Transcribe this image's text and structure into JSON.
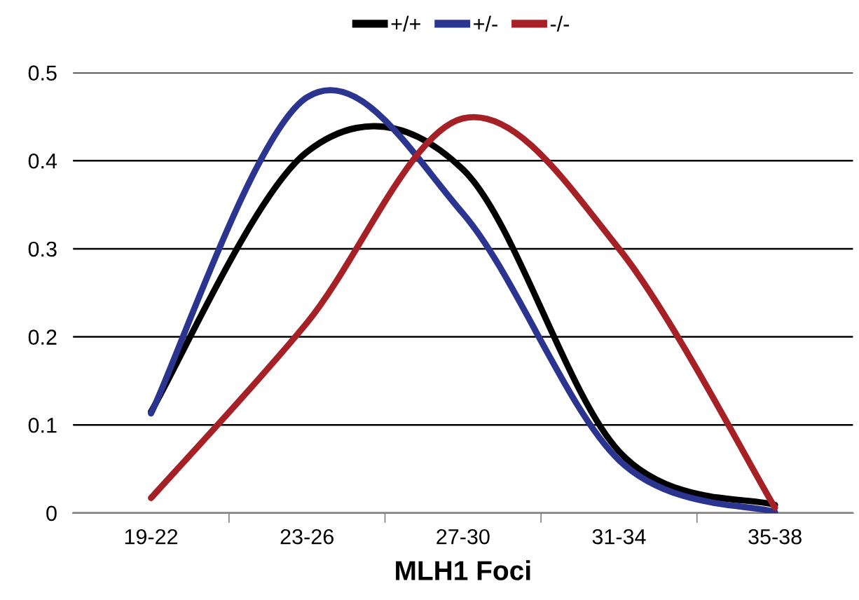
{
  "chart_data": {
    "type": "line",
    "xlabel": "MLH1 Foci",
    "categories": [
      "19-22",
      "23-26",
      "27-30",
      "31-34",
      "35-38"
    ],
    "series": [
      {
        "name": "+/+",
        "color": "#000000",
        "values": [
          0.115,
          0.41,
          0.39,
          0.07,
          0.009
        ]
      },
      {
        "name": "+/-",
        "color": "#2b3590",
        "values": [
          0.113,
          0.472,
          0.34,
          0.06,
          0.001
        ]
      },
      {
        "name": "-/-",
        "color": "#a62126",
        "values": [
          0.017,
          0.216,
          0.448,
          0.3,
          0.006
        ]
      }
    ],
    "ylim": [
      0,
      0.5
    ],
    "yticks": [
      0,
      0.1,
      0.2,
      0.3,
      0.4,
      0.5
    ],
    "grid": "y",
    "legend": "top",
    "marker": "none",
    "line_style": "solid"
  }
}
